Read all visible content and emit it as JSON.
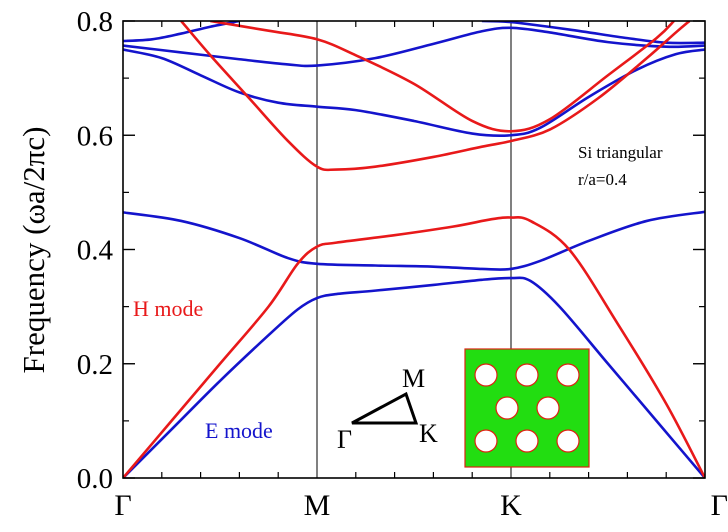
{
  "chart_data": {
    "type": "line",
    "title": "",
    "ylabel": "Frequency (ωa/2πc)",
    "xlabel": "",
    "ylim": [
      0,
      0.8
    ],
    "xlim": [
      0,
      3
    ],
    "grid": false,
    "x_ticks": [
      {
        "x": 0,
        "label": "Γ"
      },
      {
        "x": 1,
        "label": "M"
      },
      {
        "x": 2,
        "label": "K"
      },
      {
        "x": 3,
        "label": "Γ"
      }
    ],
    "y_ticks": [
      "0.0",
      "0.2",
      "0.4",
      "0.6",
      "0.8"
    ],
    "y_tick_values": [
      0,
      0.2,
      0.4,
      0.6,
      0.8
    ],
    "annotations": {
      "material": "Si triangular",
      "ratio": "r/a=0.4",
      "h_mode": "H mode",
      "e_mode": "E mode",
      "bz_gamma": "Γ",
      "bz_m": "M",
      "bz_k": "K"
    },
    "colors": {
      "h_mode": "#e8191a",
      "e_mode": "#1414cc",
      "inset_fill": "#22dd11",
      "inset_border": "#dd2211",
      "axis": "#000000"
    },
    "series": [
      {
        "mode": "E",
        "points": [
          [
            0,
            0
          ],
          [
            0.25,
            0.085
          ],
          [
            0.5,
            0.17
          ],
          [
            0.75,
            0.25
          ],
          [
            0.9,
            0.295
          ],
          [
            1,
            0.315
          ],
          [
            1.1,
            0.322
          ],
          [
            1.3,
            0.328
          ],
          [
            1.6,
            0.338
          ],
          [
            1.85,
            0.347
          ],
          [
            2,
            0.35
          ],
          [
            2.1,
            0.345
          ],
          [
            2.25,
            0.3
          ],
          [
            2.5,
            0.2
          ],
          [
            2.75,
            0.1
          ],
          [
            3,
            0
          ]
        ]
      },
      {
        "mode": "E",
        "points": [
          [
            0,
            0.465
          ],
          [
            0.3,
            0.45
          ],
          [
            0.6,
            0.42
          ],
          [
            0.85,
            0.385
          ],
          [
            1,
            0.375
          ],
          [
            1.3,
            0.372
          ],
          [
            1.6,
            0.37
          ],
          [
            1.85,
            0.366
          ],
          [
            2,
            0.366
          ],
          [
            2.15,
            0.38
          ],
          [
            2.4,
            0.415
          ],
          [
            2.7,
            0.45
          ],
          [
            3,
            0.466
          ]
        ]
      },
      {
        "mode": "E",
        "points": [
          [
            0,
            0.75
          ],
          [
            0.2,
            0.735
          ],
          [
            0.4,
            0.705
          ],
          [
            0.6,
            0.675
          ],
          [
            0.8,
            0.657
          ],
          [
            1,
            0.65
          ],
          [
            1.2,
            0.644
          ],
          [
            1.5,
            0.625
          ],
          [
            1.8,
            0.603
          ],
          [
            2,
            0.6
          ],
          [
            2.15,
            0.613
          ],
          [
            2.4,
            0.667
          ],
          [
            2.65,
            0.715
          ],
          [
            2.85,
            0.742
          ],
          [
            3,
            0.75
          ]
        ]
      },
      {
        "mode": "E",
        "points": [
          [
            0,
            0.757
          ],
          [
            0.3,
            0.745
          ],
          [
            0.6,
            0.733
          ],
          [
            0.85,
            0.724
          ],
          [
            1,
            0.722
          ],
          [
            1.3,
            0.735
          ],
          [
            1.6,
            0.76
          ],
          [
            1.85,
            0.782
          ],
          [
            2,
            0.788
          ],
          [
            2.2,
            0.78
          ],
          [
            2.5,
            0.763
          ],
          [
            2.8,
            0.755
          ],
          [
            3,
            0.757
          ]
        ]
      },
      {
        "mode": "E",
        "points": [
          [
            0,
            0.765
          ],
          [
            0.15,
            0.768
          ],
          [
            0.3,
            0.778
          ],
          [
            0.45,
            0.79
          ],
          [
            0.6,
            0.8
          ]
        ]
      },
      {
        "mode": "E",
        "points": [
          [
            1.85,
            0.8
          ],
          [
            2,
            0.798
          ],
          [
            2.3,
            0.785
          ],
          [
            2.6,
            0.77
          ],
          [
            2.8,
            0.762
          ],
          [
            3,
            0.762
          ]
        ]
      },
      {
        "mode": "H",
        "points": [
          [
            0,
            0
          ],
          [
            0.25,
            0.1
          ],
          [
            0.5,
            0.2
          ],
          [
            0.75,
            0.3
          ],
          [
            0.9,
            0.375
          ],
          [
            1,
            0.405
          ],
          [
            1.1,
            0.412
          ],
          [
            1.4,
            0.425
          ],
          [
            1.7,
            0.44
          ],
          [
            1.9,
            0.453
          ],
          [
            2,
            0.456
          ],
          [
            2.1,
            0.45
          ],
          [
            2.3,
            0.4
          ],
          [
            2.55,
            0.27
          ],
          [
            2.8,
            0.13
          ],
          [
            3,
            0
          ]
        ]
      },
      {
        "mode": "H",
        "points": [
          [
            0.3,
            0.8
          ],
          [
            0.45,
            0.74
          ],
          [
            0.65,
            0.665
          ],
          [
            0.85,
            0.59
          ],
          [
            1,
            0.545
          ],
          [
            1.1,
            0.54
          ],
          [
            1.3,
            0.545
          ],
          [
            1.6,
            0.562
          ],
          [
            1.85,
            0.58
          ],
          [
            2,
            0.59
          ],
          [
            2.2,
            0.61
          ],
          [
            2.45,
            0.665
          ],
          [
            2.7,
            0.735
          ],
          [
            2.85,
            0.78
          ],
          [
            2.92,
            0.8
          ]
        ]
      },
      {
        "mode": "H",
        "points": [
          [
            0.45,
            0.8
          ],
          [
            0.75,
            0.783
          ],
          [
            1,
            0.768
          ],
          [
            1.2,
            0.74
          ],
          [
            1.5,
            0.69
          ],
          [
            1.8,
            0.625
          ],
          [
            2,
            0.607
          ],
          [
            2.2,
            0.628
          ],
          [
            2.5,
            0.705
          ],
          [
            2.75,
            0.77
          ],
          [
            2.84,
            0.8
          ]
        ]
      }
    ]
  }
}
